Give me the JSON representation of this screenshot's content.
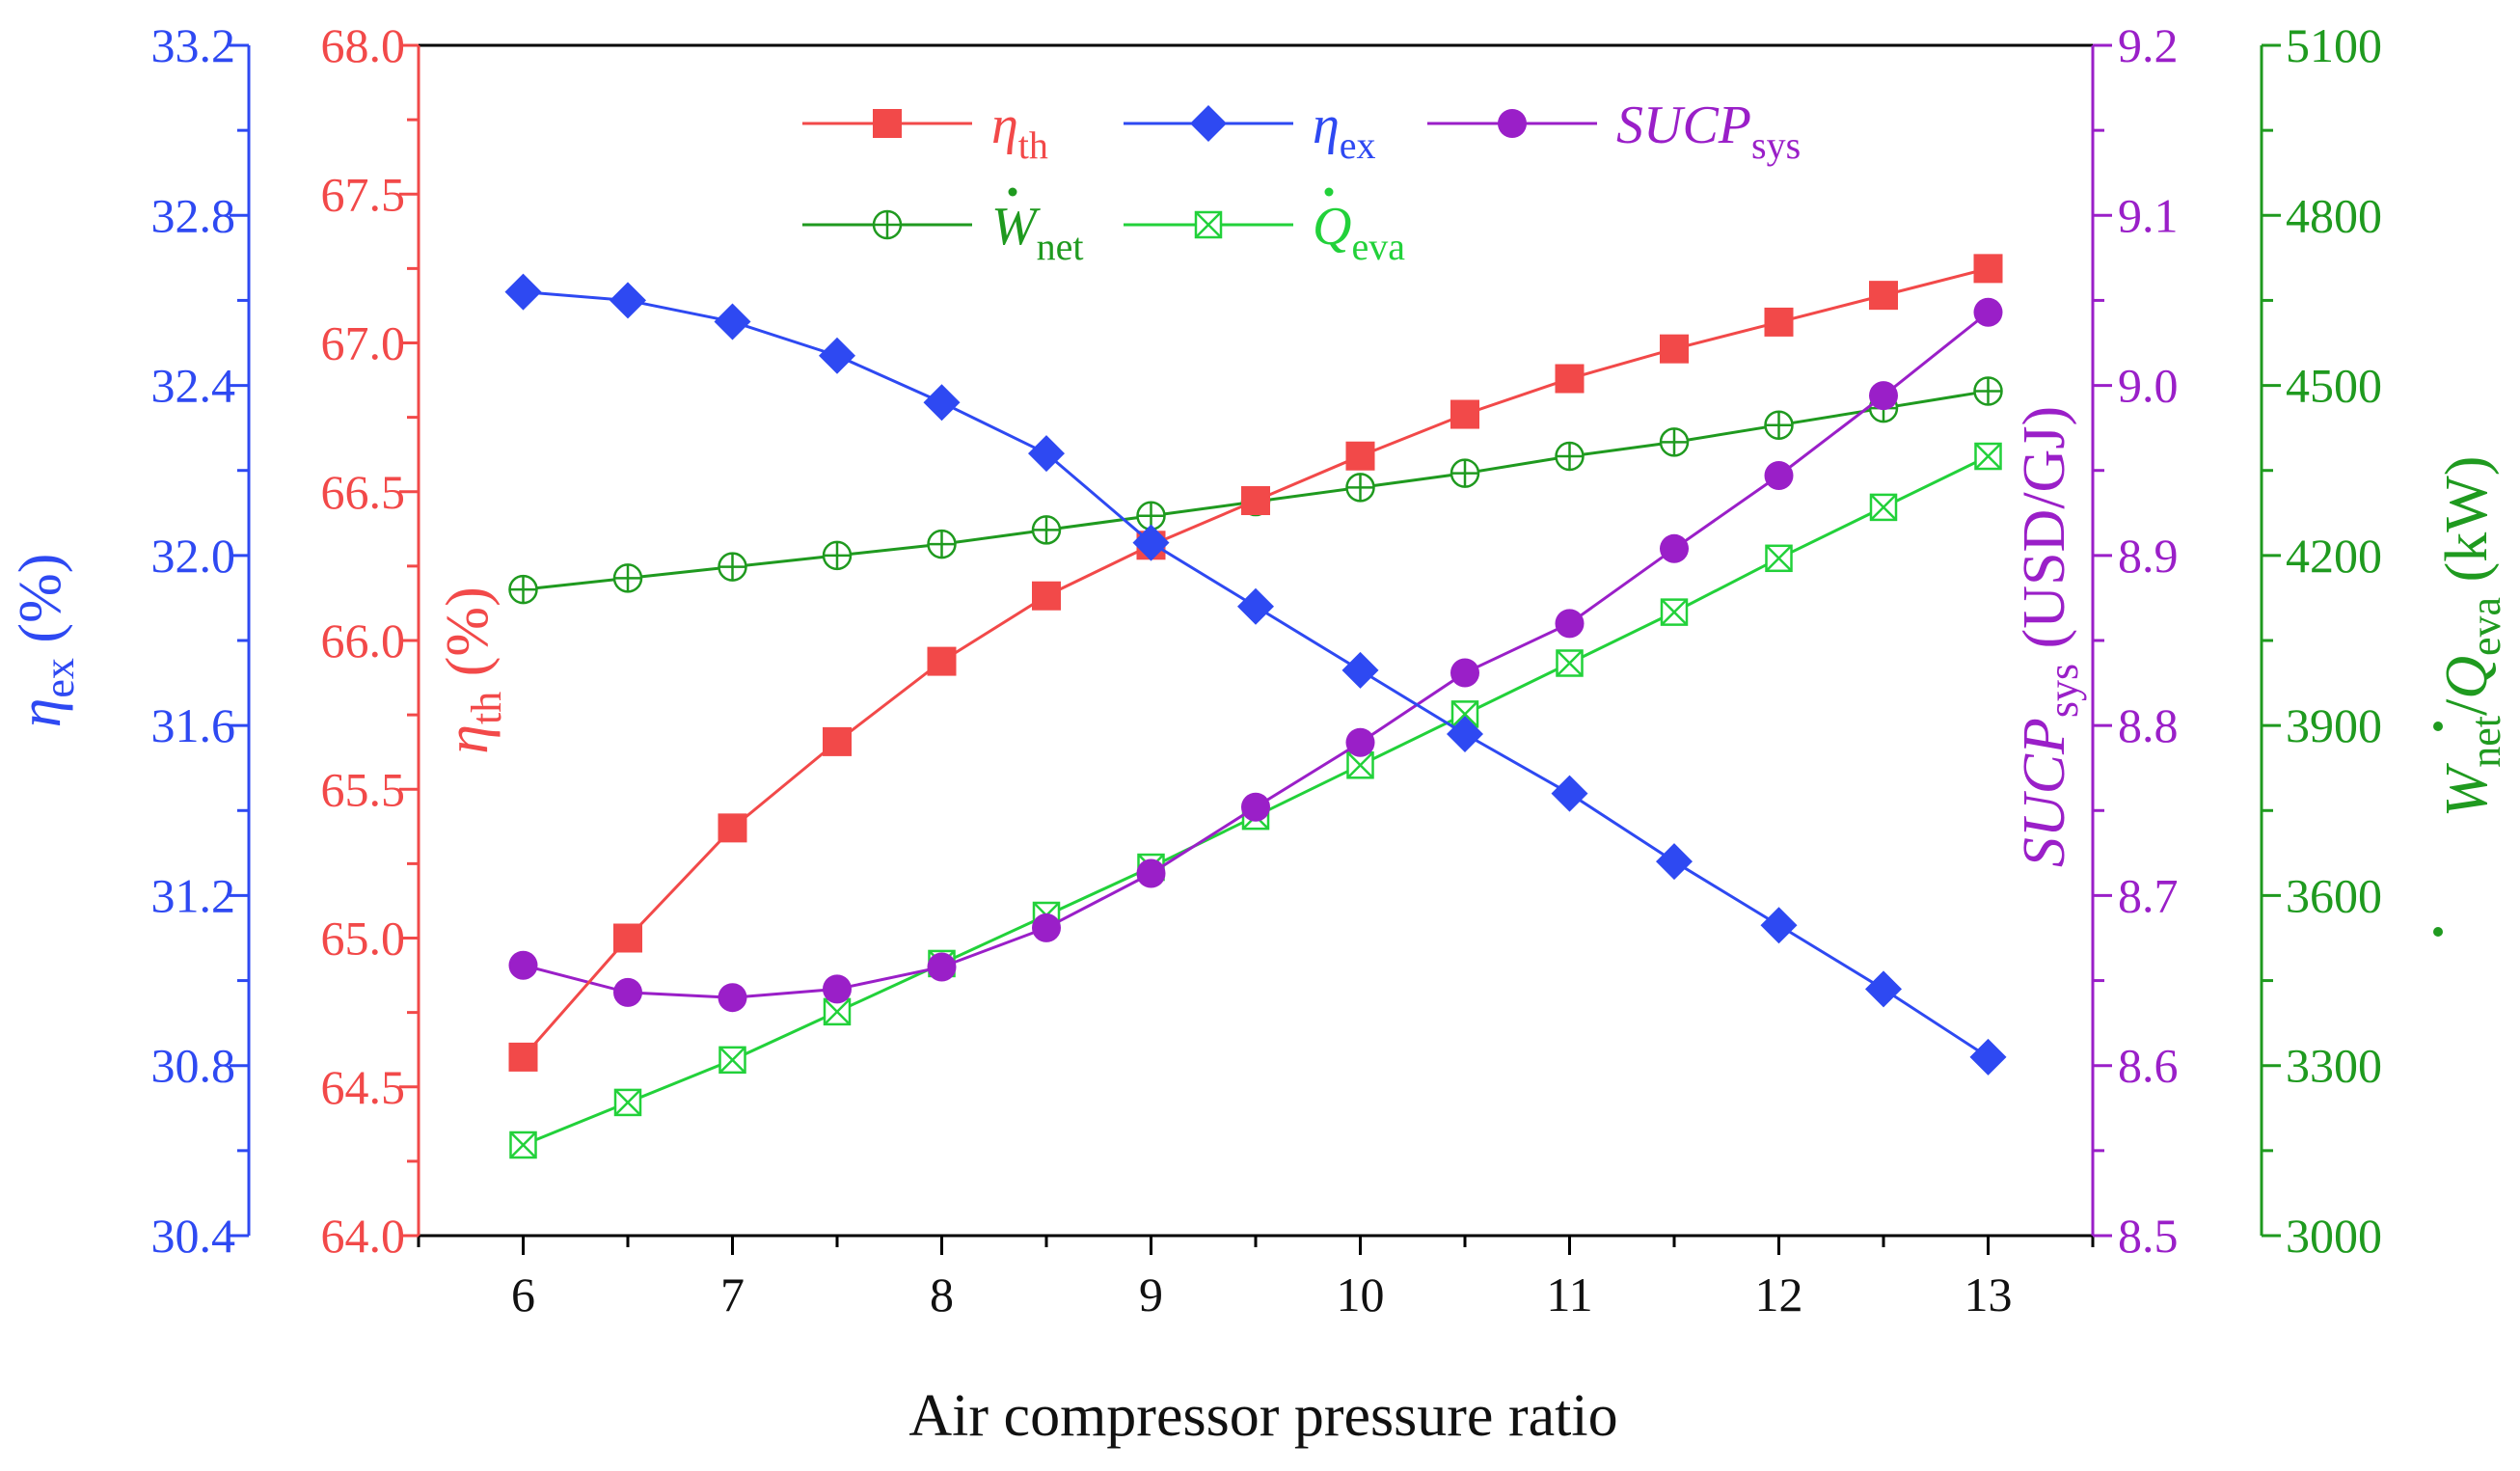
{
  "chart_data": {
    "type": "line",
    "xlabel": "Air compressor pressure ratio",
    "x": [
      6,
      6.5,
      7,
      7.5,
      8,
      8.5,
      9,
      9.5,
      10,
      10.5,
      11,
      11.5,
      12,
      12.5,
      13
    ],
    "xticks": [
      6,
      7,
      8,
      9,
      10,
      11,
      12,
      13
    ],
    "xlim": [
      5.5,
      13.5
    ],
    "axes": {
      "eta_ex": {
        "label_main": "η",
        "label_sub": "ex",
        "label_rest": " (%)",
        "ylim": [
          30.4,
          33.2
        ],
        "ticks": [
          "30.4",
          "30.8",
          "31.2",
          "31.6",
          "32.0",
          "32.4",
          "32.8",
          "33.2"
        ],
        "color": "#2e49f2"
      },
      "eta_th": {
        "label_main": "η",
        "label_sub": "th",
        "label_rest": " (%)",
        "ylim": [
          64.0,
          68.0
        ],
        "ticks": [
          "64.0",
          "64.5",
          "65.0",
          "65.5",
          "66.0",
          "66.5",
          "67.0",
          "67.5",
          "68.0"
        ],
        "color": "#f24949"
      },
      "sucp": {
        "label_main": "SUCP",
        "label_sub": "sys",
        "label_rest": " (USD/GJ)",
        "ylim": [
          8.5,
          9.2
        ],
        "ticks": [
          "8.5",
          "8.6",
          "8.7",
          "8.8",
          "8.9",
          "9.0",
          "9.1",
          "9.2"
        ],
        "color": "#9a1fc8"
      },
      "power": {
        "label_a": "W",
        "label_a_sub": "net",
        "label_sep": "/",
        "label_b": "Q",
        "label_b_sub": "eva",
        "label_rest": " (kW)",
        "ylim": [
          3000,
          5100
        ],
        "ticks": [
          "3000",
          "3300",
          "3600",
          "3900",
          "4200",
          "4500",
          "4800",
          "5100"
        ],
        "color": "#1f9a1f"
      }
    },
    "series": [
      {
        "key": "eta_th",
        "axis": "eta_th",
        "legend_main": "η",
        "legend_sub": "th",
        "color": "#f24949",
        "marker": "square",
        "values": [
          64.6,
          65.0,
          65.37,
          65.66,
          65.93,
          66.15,
          66.32,
          66.47,
          66.62,
          66.76,
          66.88,
          66.98,
          67.07,
          67.16,
          67.25
        ]
      },
      {
        "key": "eta_ex",
        "axis": "eta_ex",
        "legend_main": "η",
        "legend_sub": "ex",
        "color": "#2e49f2",
        "marker": "diamond",
        "values": [
          32.62,
          32.6,
          32.55,
          32.47,
          32.36,
          32.24,
          32.03,
          31.88,
          31.73,
          31.58,
          31.44,
          31.28,
          31.13,
          30.98,
          30.82
        ]
      },
      {
        "key": "sucp",
        "axis": "sucp",
        "legend_main": "SUCP",
        "legend_sub": "sys",
        "color": "#9a1fc8",
        "marker": "circle",
        "values": [
          8.659,
          8.643,
          8.64,
          8.645,
          8.658,
          8.681,
          8.713,
          8.752,
          8.79,
          8.831,
          8.86,
          8.904,
          8.947,
          8.994,
          9.043
        ]
      },
      {
        "key": "w_net",
        "axis": "power",
        "legend_main": "W",
        "legend_sub": "net",
        "legend_dot": true,
        "color": "#1f9a1f",
        "marker": "circleplus",
        "values": [
          4140,
          4160,
          4180,
          4200,
          4220,
          4245,
          4270,
          4295,
          4320,
          4345,
          4375,
          4400,
          4430,
          4460,
          4490
        ]
      },
      {
        "key": "q_eva",
        "axis": "power",
        "legend_main": "Q",
        "legend_sub": "eva",
        "legend_dot": true,
        "color": "#22d13a",
        "marker": "squarex",
        "values": [
          3160,
          3235,
          3310,
          3395,
          3480,
          3565,
          3650,
          3740,
          3830,
          3920,
          4010,
          4100,
          4195,
          4285,
          4375
        ]
      }
    ]
  }
}
